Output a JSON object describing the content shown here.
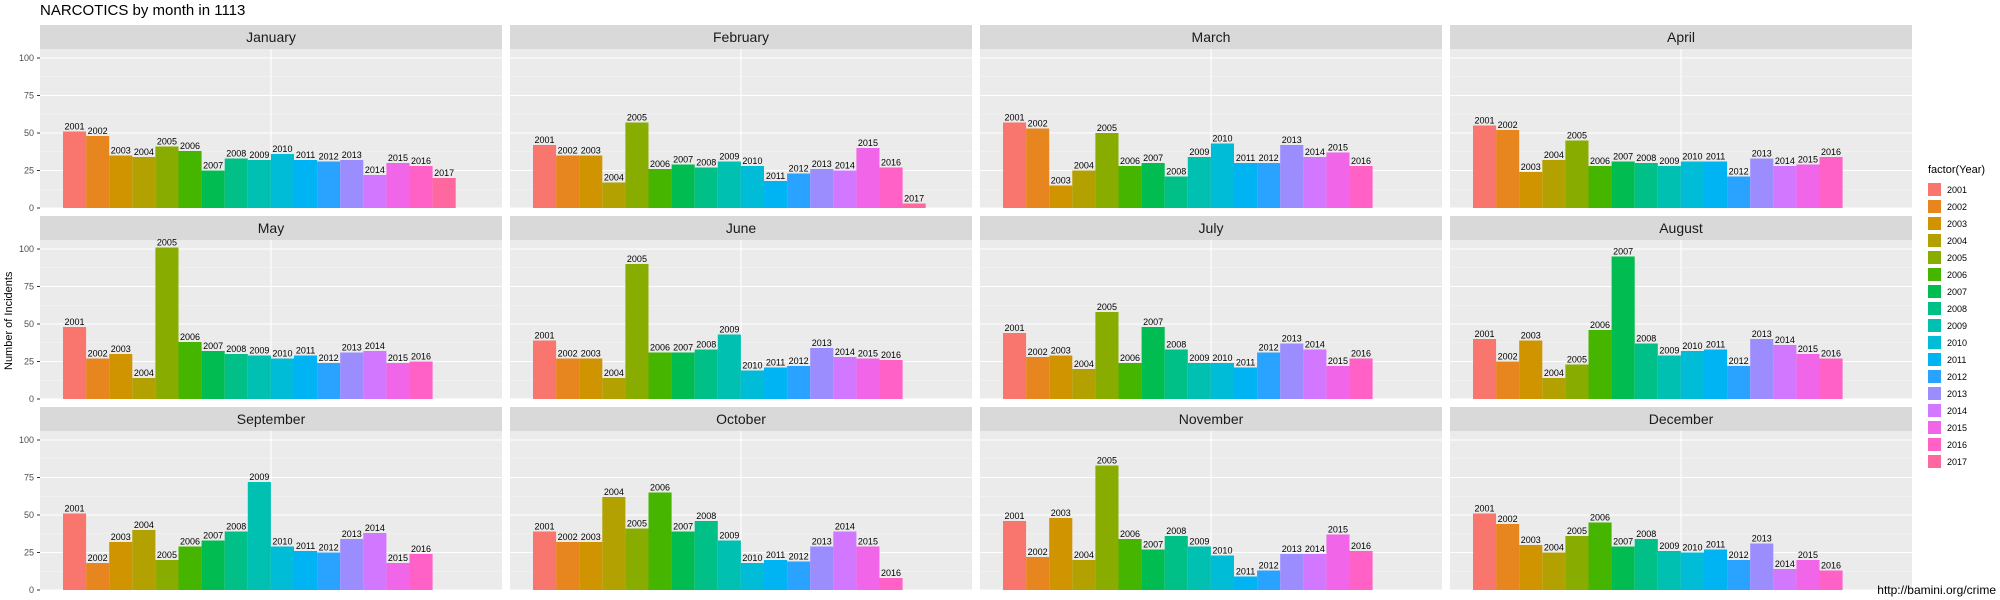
{
  "chart_data": {
    "type": "bar",
    "title": "NARCOTICS by month in 1113",
    "ylabel": "Number of Incidents",
    "xlabel": "",
    "ylim": [
      0,
      100
    ],
    "y_ticks": [
      "0",
      "25",
      "50",
      "75",
      "100"
    ],
    "legend_title": "factor(Year)",
    "legend_placement": "right",
    "grid": true,
    "source": "http://bamini.org/crime",
    "years": [
      "2001",
      "2002",
      "2003",
      "2004",
      "2005",
      "2006",
      "2007",
      "2008",
      "2009",
      "2010",
      "2011",
      "2012",
      "2013",
      "2014",
      "2015",
      "2016",
      "2017"
    ],
    "colors": [
      "#F8766D",
      "#E7851E",
      "#D09400",
      "#B2A100",
      "#89AC00",
      "#45B500",
      "#00BC51",
      "#00C087",
      "#00C0B2",
      "#00BCD6",
      "#00B3F2",
      "#29A3FF",
      "#9C8DFF",
      "#D277FF",
      "#F166E8",
      "#FF61C7",
      "#FF689E"
    ],
    "facets": [
      {
        "month": "January",
        "values": [
          51,
          48,
          35,
          34,
          41,
          38,
          25,
          33,
          32,
          36,
          32,
          31,
          32,
          22,
          30,
          28,
          20
        ]
      },
      {
        "month": "February",
        "values": [
          42,
          35,
          35,
          17,
          57,
          26,
          29,
          27,
          31,
          28,
          18,
          23,
          26,
          25,
          40,
          27,
          3
        ]
      },
      {
        "month": "March",
        "values": [
          57,
          53,
          15,
          25,
          50,
          28,
          30,
          21,
          34,
          43,
          30,
          30,
          42,
          34,
          37,
          28
        ]
      },
      {
        "month": "April",
        "values": [
          55,
          52,
          24,
          32,
          45,
          28,
          31,
          30,
          28,
          31,
          31,
          21,
          33,
          28,
          29,
          34
        ]
      },
      {
        "month": "May",
        "values": [
          48,
          27,
          30,
          14,
          101,
          38,
          32,
          30,
          29,
          27,
          29,
          24,
          31,
          32,
          24,
          25
        ]
      },
      {
        "month": "June",
        "values": [
          39,
          27,
          27,
          14,
          90,
          31,
          31,
          33,
          43,
          19,
          21,
          22,
          34,
          28,
          27,
          26
        ]
      },
      {
        "month": "July",
        "values": [
          44,
          28,
          29,
          20,
          58,
          24,
          48,
          33,
          24,
          24,
          21,
          31,
          37,
          33,
          22,
          27
        ]
      },
      {
        "month": "August",
        "values": [
          40,
          25,
          39,
          14,
          23,
          46,
          95,
          37,
          29,
          32,
          33,
          22,
          40,
          36,
          30,
          27
        ]
      },
      {
        "month": "September",
        "values": [
          51,
          18,
          32,
          40,
          20,
          29,
          33,
          39,
          72,
          29,
          26,
          25,
          34,
          38,
          18,
          24
        ]
      },
      {
        "month": "October",
        "values": [
          39,
          32,
          32,
          62,
          41,
          65,
          39,
          46,
          33,
          18,
          20,
          19,
          29,
          39,
          29,
          8
        ]
      },
      {
        "month": "November",
        "values": [
          46,
          22,
          48,
          20,
          83,
          34,
          27,
          36,
          29,
          23,
          9,
          13,
          24,
          24,
          37,
          26
        ]
      },
      {
        "month": "December",
        "values": [
          51,
          44,
          30,
          25,
          36,
          45,
          29,
          34,
          26,
          25,
          27,
          20,
          31,
          14,
          20,
          13
        ]
      }
    ]
  }
}
